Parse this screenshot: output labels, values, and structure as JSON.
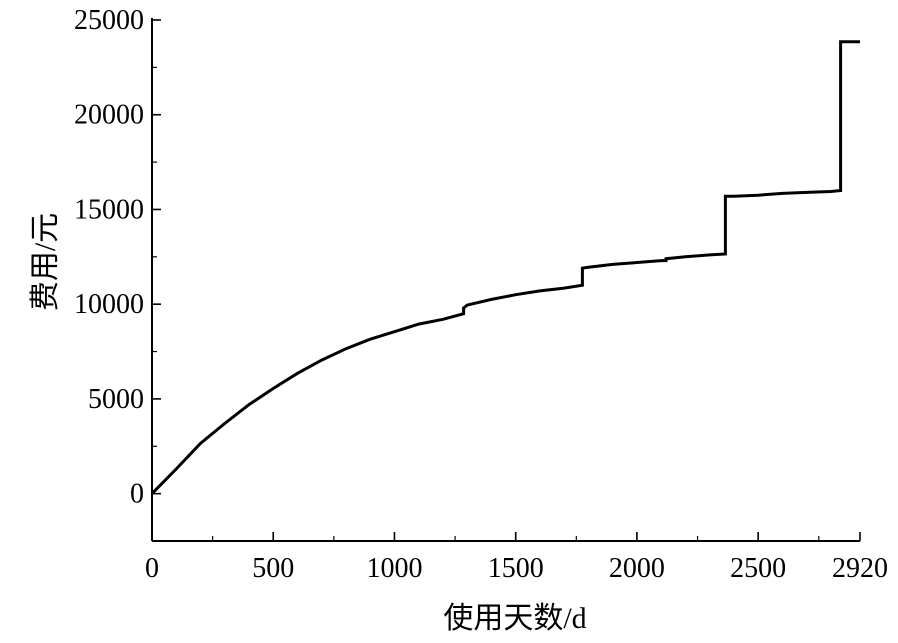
{
  "chart_data": {
    "type": "line",
    "xlabel": "使用天数/d",
    "ylabel": "费用/元",
    "xlim": [
      0,
      2920
    ],
    "ylim": [
      -2500,
      25000
    ],
    "x_ticks": [
      0,
      500,
      1000,
      1500,
      2000,
      2500,
      2920
    ],
    "x_tick_labels": [
      "0",
      "500",
      "1000",
      "1500",
      "2000",
      "2500",
      "2920"
    ],
    "y_ticks": [
      0,
      5000,
      10000,
      15000,
      20000,
      25000
    ],
    "y_tick_labels": [
      "0",
      "5000",
      "10000",
      "15000",
      "20000",
      "25000"
    ],
    "grid": false,
    "line_color": "#000000",
    "series": [
      {
        "x": [
          0,
          50,
          100,
          200,
          300,
          400,
          500,
          600,
          700,
          800,
          900,
          1000,
          1100,
          1200,
          1285,
          1285,
          1300,
          1400,
          1500,
          1600,
          1700,
          1775,
          1775,
          1800,
          1900,
          2000,
          2100,
          2120,
          2120,
          2200,
          2300,
          2365,
          2365,
          2400,
          2500,
          2600,
          2700,
          2800,
          2840,
          2840,
          2920
        ],
        "y": [
          0,
          650,
          1300,
          2650,
          3700,
          4700,
          5550,
          6350,
          7050,
          7650,
          8150,
          8550,
          8950,
          9200,
          9500,
          9800,
          9950,
          10250,
          10500,
          10700,
          10850,
          11000,
          11900,
          11950,
          12100,
          12200,
          12300,
          12300,
          12400,
          12500,
          12600,
          12650,
          15700,
          15700,
          15750,
          15850,
          15900,
          15950,
          16000,
          23850,
          23850
        ]
      }
    ]
  }
}
